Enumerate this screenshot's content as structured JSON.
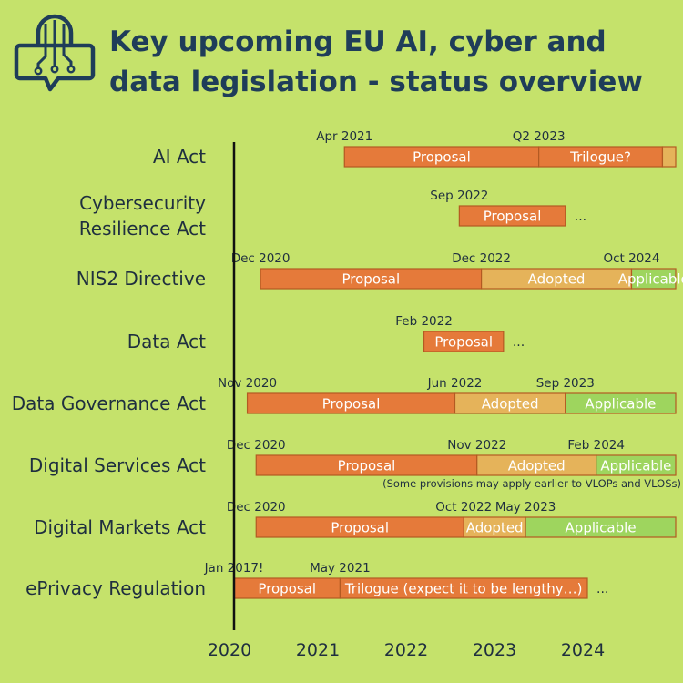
{
  "header": {
    "title": "Key upcoming EU AI, cyber and data legislation - status overview"
  },
  "colors": {
    "background": "#c5e26b",
    "title": "#1f3d59",
    "proposal": "#e57a3a",
    "trilogue": "#e57a3a",
    "adopted": "#e5b35a",
    "applicable": "#9ed55e",
    "bar_border": "#b35a22",
    "axis": "#111111"
  },
  "chart_data": {
    "type": "timeline",
    "title": "Key upcoming EU AI, cyber and data legislation - status overview",
    "x_ticks": [
      "2020",
      "2021",
      "2022",
      "2023",
      "2024"
    ],
    "x_range": [
      2020,
      2025.0
    ],
    "rows": [
      {
        "name": "AI Act",
        "label_lines": [
          "AI Act"
        ],
        "dates": [
          {
            "text": "Apr 2021",
            "at": 2021.25
          },
          {
            "text": "Q2 2023",
            "at": 2023.45
          }
        ],
        "segments": [
          {
            "phase": "proposal",
            "label": "Proposal",
            "start": 2021.25,
            "end": 2023.45
          },
          {
            "phase": "trilogue",
            "label": "Trilogue?",
            "start": 2023.45,
            "end": 2024.85
          },
          {
            "phase": "adopted",
            "label": "",
            "start": 2024.85,
            "end": 2025.0
          }
        ],
        "ellipsis": ""
      },
      {
        "name": "Cybersecurity Resilience Act",
        "label_lines": [
          "Cybersecurity",
          "Resilience Act"
        ],
        "dates": [
          {
            "text": "Sep 2022",
            "at": 2022.55
          }
        ],
        "segments": [
          {
            "phase": "proposal",
            "label": "Proposal",
            "start": 2022.55,
            "end": 2023.75
          }
        ],
        "ellipsis": "..."
      },
      {
        "name": "NIS2 Directive",
        "label_lines": [
          "NIS2 Directive"
        ],
        "dates": [
          {
            "text": "Dec 2020",
            "at": 2020.3
          },
          {
            "text": "Dec 2022",
            "at": 2022.8
          },
          {
            "text": "Oct 2024",
            "at": 2024.5
          }
        ],
        "segments": [
          {
            "phase": "proposal",
            "label": "Proposal",
            "start": 2020.3,
            "end": 2022.8
          },
          {
            "phase": "adopted",
            "label": "Adopted",
            "start": 2022.8,
            "end": 2024.5
          },
          {
            "phase": "applicable",
            "label": "Applicable",
            "start": 2024.5,
            "end": 2025.0
          }
        ],
        "ellipsis": ""
      },
      {
        "name": "Data Act",
        "label_lines": [
          "Data Act"
        ],
        "dates": [
          {
            "text": "Feb 2022",
            "at": 2022.15
          }
        ],
        "segments": [
          {
            "phase": "proposal",
            "label": "Proposal",
            "start": 2022.15,
            "end": 2023.05
          }
        ],
        "ellipsis": "..."
      },
      {
        "name": "Data Governance Act",
        "label_lines": [
          "Data Governance Act"
        ],
        "dates": [
          {
            "text": "Nov 2020",
            "at": 2020.15
          },
          {
            "text": "Jun 2022",
            "at": 2022.5
          },
          {
            "text": "Sep 2023",
            "at": 2023.75
          }
        ],
        "segments": [
          {
            "phase": "proposal",
            "label": "Proposal",
            "start": 2020.15,
            "end": 2022.5
          },
          {
            "phase": "adopted",
            "label": "Adopted",
            "start": 2022.5,
            "end": 2023.75
          },
          {
            "phase": "applicable",
            "label": "Applicable",
            "start": 2023.75,
            "end": 2025.0
          }
        ],
        "ellipsis": ""
      },
      {
        "name": "Digital Services Act",
        "label_lines": [
          "Digital Services Act"
        ],
        "dates": [
          {
            "text": "Dec 2020",
            "at": 2020.25
          },
          {
            "text": "Nov 2022",
            "at": 2022.75
          },
          {
            "text": "Feb 2024",
            "at": 2024.1
          }
        ],
        "segments": [
          {
            "phase": "proposal",
            "label": "Proposal",
            "start": 2020.25,
            "end": 2022.75
          },
          {
            "phase": "adopted",
            "label": "Adopted",
            "start": 2022.75,
            "end": 2024.1
          },
          {
            "phase": "applicable",
            "label": "Applicable",
            "start": 2024.1,
            "end": 2025.0
          }
        ],
        "note": "(Some provisions may apply earlier to VLOPs and VLOSs)",
        "ellipsis": ""
      },
      {
        "name": "Digital Markets Act",
        "label_lines": [
          "Digital Markets Act"
        ],
        "dates": [
          {
            "text": "Dec 2020",
            "at": 2020.25
          },
          {
            "text": "Oct 2022",
            "at": 2022.6
          },
          {
            "text": "May 2023",
            "at": 2023.3
          }
        ],
        "segments": [
          {
            "phase": "proposal",
            "label": "Proposal",
            "start": 2020.25,
            "end": 2022.6
          },
          {
            "phase": "adopted",
            "label": "Adopted",
            "start": 2022.6,
            "end": 2023.3
          },
          {
            "phase": "applicable",
            "label": "Applicable",
            "start": 2023.3,
            "end": 2025.0
          }
        ],
        "ellipsis": ""
      },
      {
        "name": "ePrivacy Regulation",
        "label_lines": [
          "ePrivacy Regulation"
        ],
        "dates": [
          {
            "text": "Jan 2017!",
            "at": 2020.0
          },
          {
            "text": "May 2021",
            "at": 2021.2
          }
        ],
        "segments": [
          {
            "phase": "proposal",
            "label": "Proposal",
            "start": 2020.0,
            "end": 2021.2
          },
          {
            "phase": "trilogue",
            "label": "Trilogue (expect it to be lengthy…)",
            "start": 2021.2,
            "end": 2024.0
          }
        ],
        "ellipsis": "..."
      }
    ]
  }
}
